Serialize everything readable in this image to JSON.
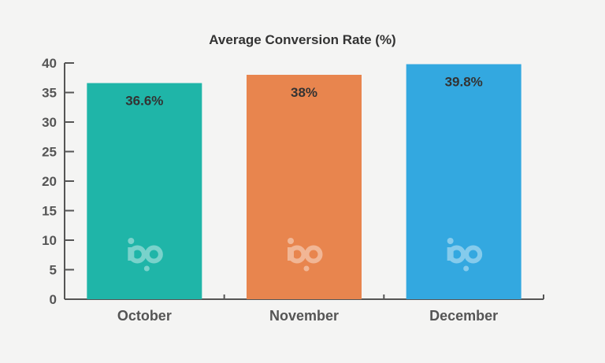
{
  "chart_data": {
    "type": "bar",
    "title": "Average Conversion Rate (%)",
    "xlabel": "",
    "ylabel": "",
    "ylim": [
      0,
      40
    ],
    "yticks": [
      0,
      5,
      10,
      15,
      20,
      25,
      30,
      35,
      40
    ],
    "categories": [
      "October",
      "November",
      "December"
    ],
    "values": [
      36.6,
      38,
      39.8
    ],
    "data_labels": [
      "36.6%",
      "38%",
      "39.8%"
    ],
    "colors": [
      "#1fb5a8",
      "#e8854e",
      "#33a8e0"
    ],
    "grid": false,
    "legend": "none",
    "watermark_icon": "bp-logo-icon"
  }
}
